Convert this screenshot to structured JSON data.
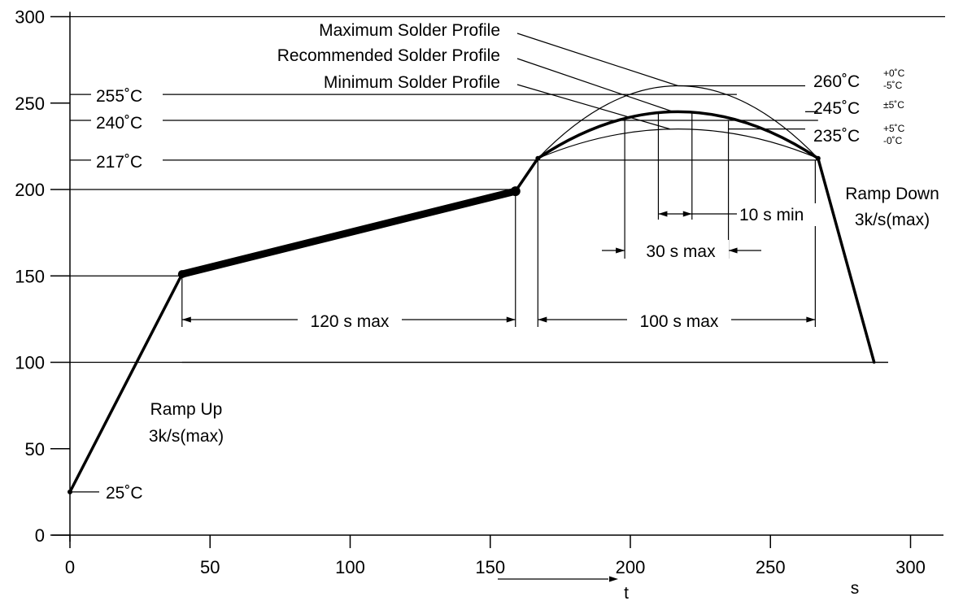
{
  "chart_data": {
    "type": "line",
    "x_axis": {
      "range": [
        0,
        300
      ],
      "ticks": [
        0,
        50,
        100,
        150,
        200,
        250,
        300
      ],
      "unit_label": "s",
      "arrow_label": "t"
    },
    "y_axis": {
      "range": [
        0,
        300
      ],
      "ticks": [
        0,
        50,
        100,
        150,
        200,
        250,
        300
      ]
    },
    "grid": false,
    "series": [
      {
        "key": "ramp_up",
        "points": [
          [
            0,
            25
          ],
          [
            40,
            151
          ]
        ],
        "weight": "medium"
      },
      {
        "key": "preheat",
        "points": [
          [
            40,
            151
          ],
          [
            159,
            199
          ]
        ],
        "weight": "heavy"
      },
      {
        "key": "ramp_to_liquidus",
        "points": [
          [
            159,
            199
          ],
          [
            167,
            218
          ]
        ],
        "weight": "medium"
      },
      {
        "key": "maximum_profile",
        "points": [
          [
            167,
            218
          ],
          [
            217,
            260
          ],
          [
            267,
            218
          ]
        ],
        "weight": "thin",
        "peak": 260
      },
      {
        "key": "recommended_profile",
        "points": [
          [
            167,
            218
          ],
          [
            217,
            245
          ],
          [
            267,
            218
          ]
        ],
        "weight": "medium",
        "peak": 245
      },
      {
        "key": "minimum_profile",
        "points": [
          [
            167,
            218
          ],
          [
            217,
            235
          ],
          [
            267,
            218
          ]
        ],
        "weight": "thin",
        "peak": 235
      },
      {
        "key": "ramp_down",
        "points": [
          [
            267,
            218
          ],
          [
            287,
            100
          ]
        ],
        "weight": "medium"
      }
    ],
    "reference_lines": [
      {
        "y": 255,
        "label": "255˚C",
        "x_range": [
          0,
          238
        ]
      },
      {
        "y": 240,
        "label": "240˚C",
        "x_range": [
          0,
          267
        ]
      },
      {
        "y": 217,
        "label": "217˚C",
        "x_range": [
          0,
          267
        ]
      },
      {
        "y": 200,
        "label": "",
        "x_range": [
          0,
          159
        ]
      },
      {
        "y": 150,
        "label": "",
        "x_range": [
          0,
          40
        ]
      },
      {
        "y": 100,
        "label": "",
        "x_range": [
          0,
          292
        ]
      }
    ],
    "temperature_labels": [
      {
        "value": "260˚C",
        "sup": "+0˚C",
        "sub": "-5˚C"
      },
      {
        "value": "245˚C",
        "sup": "±5˚C",
        "sub": ""
      },
      {
        "value": "235˚C",
        "sup": "+5˚C",
        "sub": "-0˚C"
      }
    ],
    "profile_legend": [
      {
        "label": "Maximum Solder Profile",
        "points_to": "maximum_profile"
      },
      {
        "label": "Recommended Solder Profile",
        "points_to": "recommended_profile"
      },
      {
        "label": "Minimum Solder Profile",
        "points_to": "minimum_profile"
      }
    ],
    "annotations": {
      "ramp_up": [
        "Ramp Up",
        "3k/s(max)"
      ],
      "ramp_down": [
        "Ramp Down",
        "3k/s(max)"
      ],
      "start_temp": "25˚C",
      "preheat_time": "120 s max",
      "above_liquidus_time": "100 s max",
      "near_peak_time": "30 s max",
      "at_peak_time": "10 s min"
    }
  }
}
